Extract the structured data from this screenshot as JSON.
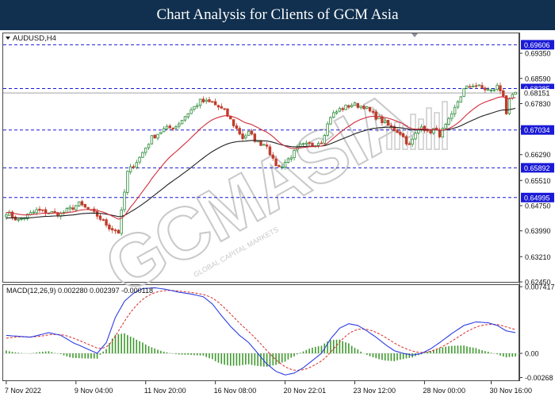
{
  "banner": {
    "title": "Chart Analysis for Clients of GCM Asia"
  },
  "watermark": {
    "text": "GCMASIA",
    "subtext": "GLOBAL CAPITAL MARKETS"
  },
  "colors": {
    "bull": "#2e8b3a",
    "bear": "#c03c2a",
    "ema_fast": "#d22d3c",
    "ema_slow": "#222222",
    "level": "#1a1ad6",
    "macd_line": "#2d3ee0",
    "signal_line": "#d82a2a",
    "hist": "#3f9a2e",
    "banner_bg": "#11304f",
    "label_bg": "#1a1ad6"
  },
  "chart_data": [
    {
      "type": "candlestick",
      "title": "AUDUSD,H4",
      "ylim": [
        0.6245,
        0.6995
      ],
      "yticks": [
        0.6935,
        0.6859,
        0.6783,
        0.6707,
        0.6629,
        0.6551,
        0.6475,
        0.6399,
        0.6321,
        0.6245
      ],
      "xticks": [
        "7 Nov 2022",
        "9 Nov 04:00",
        "11 Nov 20:00",
        "16 Nov 08:00",
        "20 Nov 22:01",
        "23 Nov 12:00",
        "28 Nov 00:00",
        "30 Nov 16:00"
      ],
      "levels": [
        {
          "value": 0.69606,
          "label": "0.69606"
        },
        {
          "value": 0.68285,
          "label": "0.68285"
        },
        {
          "value": 0.67034,
          "label": "0.67034"
        },
        {
          "value": 0.65892,
          "label": "0.65892"
        },
        {
          "value": 0.64995,
          "label": "0.64995"
        }
      ],
      "current_price": {
        "value": 0.68151,
        "label": "0.68151"
      },
      "price_path": [
        [
          0,
          0.6455
        ],
        [
          4,
          0.643
        ],
        [
          10,
          0.646
        ],
        [
          18,
          0.645
        ],
        [
          24,
          0.648
        ],
        [
          30,
          0.6445
        ],
        [
          34,
          0.641
        ],
        [
          37,
          0.6395
        ],
        [
          40,
          0.6575
        ],
        [
          44,
          0.662
        ],
        [
          48,
          0.668
        ],
        [
          52,
          0.6705
        ],
        [
          56,
          0.6715
        ],
        [
          60,
          0.6755
        ],
        [
          64,
          0.679
        ],
        [
          68,
          0.6785
        ],
        [
          72,
          0.676
        ],
        [
          75,
          0.672
        ],
        [
          78,
          0.668
        ],
        [
          80,
          0.6695
        ],
        [
          83,
          0.6665
        ],
        [
          86,
          0.666
        ],
        [
          88,
          0.661
        ],
        [
          90,
          0.659
        ],
        [
          93,
          0.6615
        ],
        [
          97,
          0.6655
        ],
        [
          101,
          0.666
        ],
        [
          104,
          0.667
        ],
        [
          107,
          0.6745
        ],
        [
          110,
          0.6765
        ],
        [
          114,
          0.678
        ],
        [
          118,
          0.6775
        ],
        [
          121,
          0.675
        ],
        [
          124,
          0.673
        ],
        [
          127,
          0.671
        ],
        [
          130,
          0.6695
        ],
        [
          133,
          0.6655
        ],
        [
          135,
          0.669
        ],
        [
          137,
          0.672
        ],
        [
          139,
          0.6695
        ],
        [
          141,
          0.6705
        ],
        [
          143,
          0.669
        ],
        [
          145,
          0.6715
        ],
        [
          147,
          0.6745
        ],
        [
          149,
          0.679
        ],
        [
          151,
          0.6825
        ],
        [
          154,
          0.684
        ],
        [
          157,
          0.683
        ],
        [
          160,
          0.682
        ],
        [
          162,
          0.6835
        ],
        [
          164,
          0.681
        ],
        [
          165,
          0.6755
        ],
        [
          166,
          0.679
        ],
        [
          168,
          0.6815
        ]
      ],
      "series": [
        {
          "type": "ema"
        },
        {
          "type": "ema"
        }
      ]
    },
    {
      "type": "macd",
      "title": "MACD(12,26,9) 0.002280 0.002397 -0.000118",
      "ylim": [
        -0.003,
        0.0076
      ],
      "yticks": [
        {
          "value": 0.007417,
          "label": "0.007417"
        },
        {
          "value": 0.0,
          "label": "0.00"
        },
        {
          "value": -0.002689,
          "label": "-0.00268"
        }
      ],
      "macd_path": [
        [
          0,
          0.002
        ],
        [
          8,
          0.0018
        ],
        [
          14,
          0.0023
        ],
        [
          18,
          0.002
        ],
        [
          22,
          0.0012
        ],
        [
          26,
          0.0006
        ],
        [
          30,
          0.0
        ],
        [
          33,
          0.0012
        ],
        [
          36,
          0.004
        ],
        [
          39,
          0.0058
        ],
        [
          42,
          0.0067
        ],
        [
          45,
          0.0072
        ],
        [
          49,
          0.0073
        ],
        [
          53,
          0.0071
        ],
        [
          57,
          0.0068
        ],
        [
          61,
          0.0066
        ],
        [
          65,
          0.0063
        ],
        [
          68,
          0.0055
        ],
        [
          71,
          0.0042
        ],
        [
          74,
          0.003
        ],
        [
          77,
          0.002
        ],
        [
          80,
          0.0012
        ],
        [
          83,
          0.0
        ],
        [
          86,
          -0.0012
        ],
        [
          89,
          -0.002
        ],
        [
          92,
          -0.0024
        ],
        [
          95,
          -0.0022
        ],
        [
          98,
          -0.0016
        ],
        [
          101,
          -0.0008
        ],
        [
          104,
          0.0
        ],
        [
          107,
          0.0016
        ],
        [
          110,
          0.0028
        ],
        [
          113,
          0.0033
        ],
        [
          116,
          0.0031
        ],
        [
          119,
          0.0025
        ],
        [
          122,
          0.0018
        ],
        [
          125,
          0.001
        ],
        [
          128,
          0.0003
        ],
        [
          131,
          0.0
        ],
        [
          134,
          -0.0002
        ],
        [
          137,
          0.0
        ],
        [
          140,
          0.0005
        ],
        [
          143,
          0.0012
        ],
        [
          147,
          0.0022
        ],
        [
          151,
          0.0031
        ],
        [
          155,
          0.0035
        ],
        [
          159,
          0.0034
        ],
        [
          162,
          0.0031
        ],
        [
          165,
          0.0025
        ],
        [
          168,
          0.0023
        ]
      ]
    }
  ]
}
